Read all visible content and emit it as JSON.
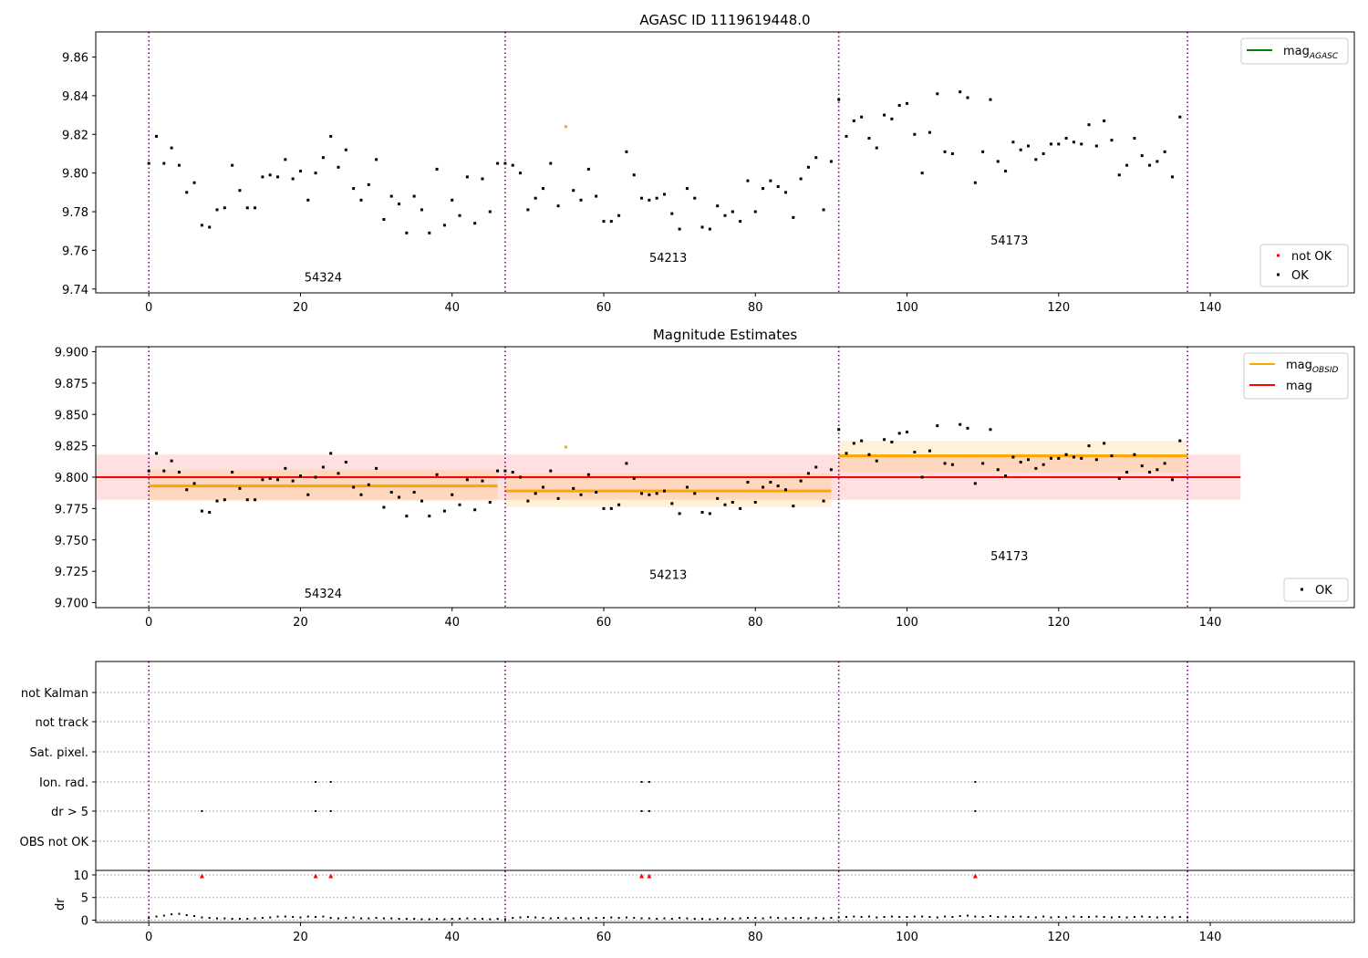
{
  "chart_data": [
    {
      "type": "scatter",
      "title": "AGASC ID 1119619448.0",
      "xlim": [
        -7,
        159
      ],
      "ylim": [
        9.738,
        9.873
      ],
      "xticks": [
        0,
        20,
        40,
        60,
        80,
        100,
        120,
        140
      ],
      "yticks": [
        9.74,
        9.76,
        9.78,
        9.8,
        9.82,
        9.84,
        9.86
      ],
      "ytick_decimals": 2,
      "obs_boundaries": [
        0,
        47,
        91,
        137
      ],
      "obs_labels": [
        {
          "text": "54324",
          "x": 23,
          "y": 9.744
        },
        {
          "text": "54213",
          "x": 68.5,
          "y": 9.754
        },
        {
          "text": "54173",
          "x": 113.5,
          "y": 9.763
        }
      ],
      "legend_upper": [
        {
          "label": "mag",
          "sub": "AGASC",
          "color": "#008000"
        }
      ],
      "legend_lower": [
        {
          "label": "not OK",
          "color": "#ff0000"
        },
        {
          "label": "OK",
          "color": "#000000"
        }
      ],
      "series": [
        {
          "name": "OK",
          "points_ref": "mag_points"
        }
      ]
    },
    {
      "type": "scatter",
      "title": "Magnitude Estimates",
      "xlim": [
        -7,
        159
      ],
      "ylim": [
        9.696,
        9.904
      ],
      "xticks": [
        0,
        20,
        40,
        60,
        80,
        100,
        120,
        140
      ],
      "yticks": [
        9.7,
        9.725,
        9.75,
        9.775,
        9.8,
        9.825,
        9.85,
        9.875,
        9.9
      ],
      "ytick_decimals": 3,
      "obs_boundaries": [
        0,
        47,
        91,
        137
      ],
      "obs_labels": [
        {
          "text": "54324",
          "x": 23,
          "y": 9.704
        },
        {
          "text": "54213",
          "x": 68.5,
          "y": 9.719
        },
        {
          "text": "54173",
          "x": 113.5,
          "y": 9.734
        }
      ],
      "mag": {
        "value": 9.8,
        "band": [
          9.782,
          9.818
        ],
        "x_range": [
          -7,
          144
        ],
        "color": "#ff0000"
      },
      "obsid_mags": [
        {
          "x_range": [
            0,
            46
          ],
          "value": 9.793,
          "band": [
            9.781,
            9.806
          ]
        },
        {
          "x_range": [
            47,
            90
          ],
          "value": 9.789,
          "band": [
            9.776,
            9.803
          ]
        },
        {
          "x_range": [
            91,
            137
          ],
          "value": 9.817,
          "band": [
            9.804,
            9.829
          ]
        }
      ],
      "legend_upper": [
        {
          "label": "mag",
          "sub": "OBSID",
          "color": "#ffa500"
        },
        {
          "label": "mag",
          "color": "#ff0000"
        }
      ],
      "legend_lower": [
        {
          "label": "OK",
          "color": "#000000"
        }
      ],
      "series": [
        {
          "name": "OK",
          "points_ref": "mag_points"
        }
      ]
    },
    {
      "type": "scatter",
      "xlim": [
        -7,
        159
      ],
      "xticks": [
        0,
        20,
        40,
        60,
        80,
        100,
        120,
        140
      ],
      "obs_boundaries": [
        0,
        47,
        91,
        137
      ],
      "flag_rows": [
        "not Kalman",
        "not track",
        "Sat. pixel.",
        "Ion. rad.",
        "dr > 5",
        "OBS not OK"
      ],
      "flags": {
        "Ion. rad.": [
          22,
          24,
          65,
          66,
          109
        ],
        "dr > 5": [
          7,
          22,
          24,
          65,
          66,
          109
        ]
      },
      "dr": {
        "ylabel": "dr",
        "ylim": [
          -0.5,
          11
        ],
        "yticks": [
          0,
          5,
          10
        ],
        "clip_value": 10,
        "clipped_x": [
          7,
          22,
          24,
          65,
          66,
          109
        ],
        "values": [
          0.5,
          0.8,
          1.0,
          1.3,
          1.4,
          1.1,
          0.9,
          0.6,
          0.5,
          0.4,
          0.4,
          0.3,
          0.3,
          0.3,
          0.4,
          0.5,
          0.6,
          0.8,
          0.8,
          0.7,
          0.6,
          0.8,
          0.7,
          0.8,
          0.5,
          0.4,
          0.5,
          0.6,
          0.4,
          0.4,
          0.5,
          0.4,
          0.4,
          0.3,
          0.3,
          0.3,
          0.2,
          0.2,
          0.3,
          0.2,
          0.3,
          0.3,
          0.4,
          0.3,
          0.3,
          0.2,
          0.3,
          0.2,
          0.5,
          0.6,
          0.7,
          0.6,
          0.5,
          0.4,
          0.5,
          0.4,
          0.4,
          0.5,
          0.4,
          0.5,
          0.5,
          0.6,
          0.5,
          0.6,
          0.5,
          0.4,
          0.4,
          0.3,
          0.4,
          0.3,
          0.5,
          0.4,
          0.3,
          0.3,
          0.2,
          0.3,
          0.4,
          0.3,
          0.4,
          0.5,
          0.5,
          0.4,
          0.6,
          0.5,
          0.4,
          0.5,
          0.5,
          0.4,
          0.5,
          0.4,
          0.5,
          0.6,
          0.7,
          0.8,
          0.7,
          0.8,
          0.6,
          0.7,
          0.8,
          0.7,
          0.7,
          0.8,
          0.8,
          0.7,
          0.6,
          0.8,
          0.7,
          0.9,
          1.0,
          0.8,
          0.7,
          0.9,
          0.7,
          0.8,
          0.7,
          0.8,
          0.7,
          0.6,
          0.8,
          0.6,
          0.7,
          0.6,
          0.8,
          0.7,
          0.7,
          0.8,
          0.7,
          0.6,
          0.7,
          0.6,
          0.7,
          0.8,
          0.7,
          0.6,
          0.7,
          0.6,
          0.7,
          0.6
        ]
      }
    }
  ],
  "mag_points": {
    "y": [
      9.805,
      9.819,
      9.805,
      9.813,
      9.804,
      9.79,
      9.795,
      9.773,
      9.772,
      9.781,
      9.782,
      9.804,
      9.791,
      9.782,
      9.782,
      9.798,
      9.799,
      9.798,
      9.807,
      9.797,
      9.801,
      9.786,
      9.8,
      9.808,
      9.819,
      9.803,
      9.812,
      9.792,
      9.786,
      9.794,
      9.807,
      9.776,
      9.788,
      9.784,
      9.769,
      9.788,
      9.781,
      9.769,
      9.802,
      9.773,
      9.786,
      9.778,
      9.798,
      9.774,
      9.797,
      9.78,
      9.805,
      9.805,
      9.804,
      9.8,
      9.781,
      9.787,
      9.792,
      9.805,
      9.783,
      9.824,
      9.791,
      9.786,
      9.802,
      9.788,
      9.775,
      9.775,
      9.778,
      9.811,
      9.799,
      9.787,
      9.786,
      9.787,
      9.789,
      9.779,
      9.771,
      9.792,
      9.787,
      9.772,
      9.771,
      9.783,
      9.778,
      9.78,
      9.775,
      9.796,
      9.78,
      9.792,
      9.796,
      9.793,
      9.79,
      9.777,
      9.797,
      9.803,
      9.808,
      9.781,
      9.806,
      9.838,
      9.819,
      9.827,
      9.829,
      9.818,
      9.813,
      9.83,
      9.828,
      9.835,
      9.836,
      9.82,
      9.8,
      9.821,
      9.841,
      9.811,
      9.81,
      9.842,
      9.839,
      9.795,
      9.811,
      9.838,
      9.806,
      9.801,
      9.816,
      9.812,
      9.814,
      9.807,
      9.81,
      9.815,
      9.815,
      9.818,
      9.816,
      9.815,
      9.825,
      9.814,
      9.827,
      9.817,
      9.799,
      9.804,
      9.818,
      9.809,
      9.804,
      9.806,
      9.811,
      9.798,
      9.829
    ],
    "orange_x": [
      55
    ]
  }
}
